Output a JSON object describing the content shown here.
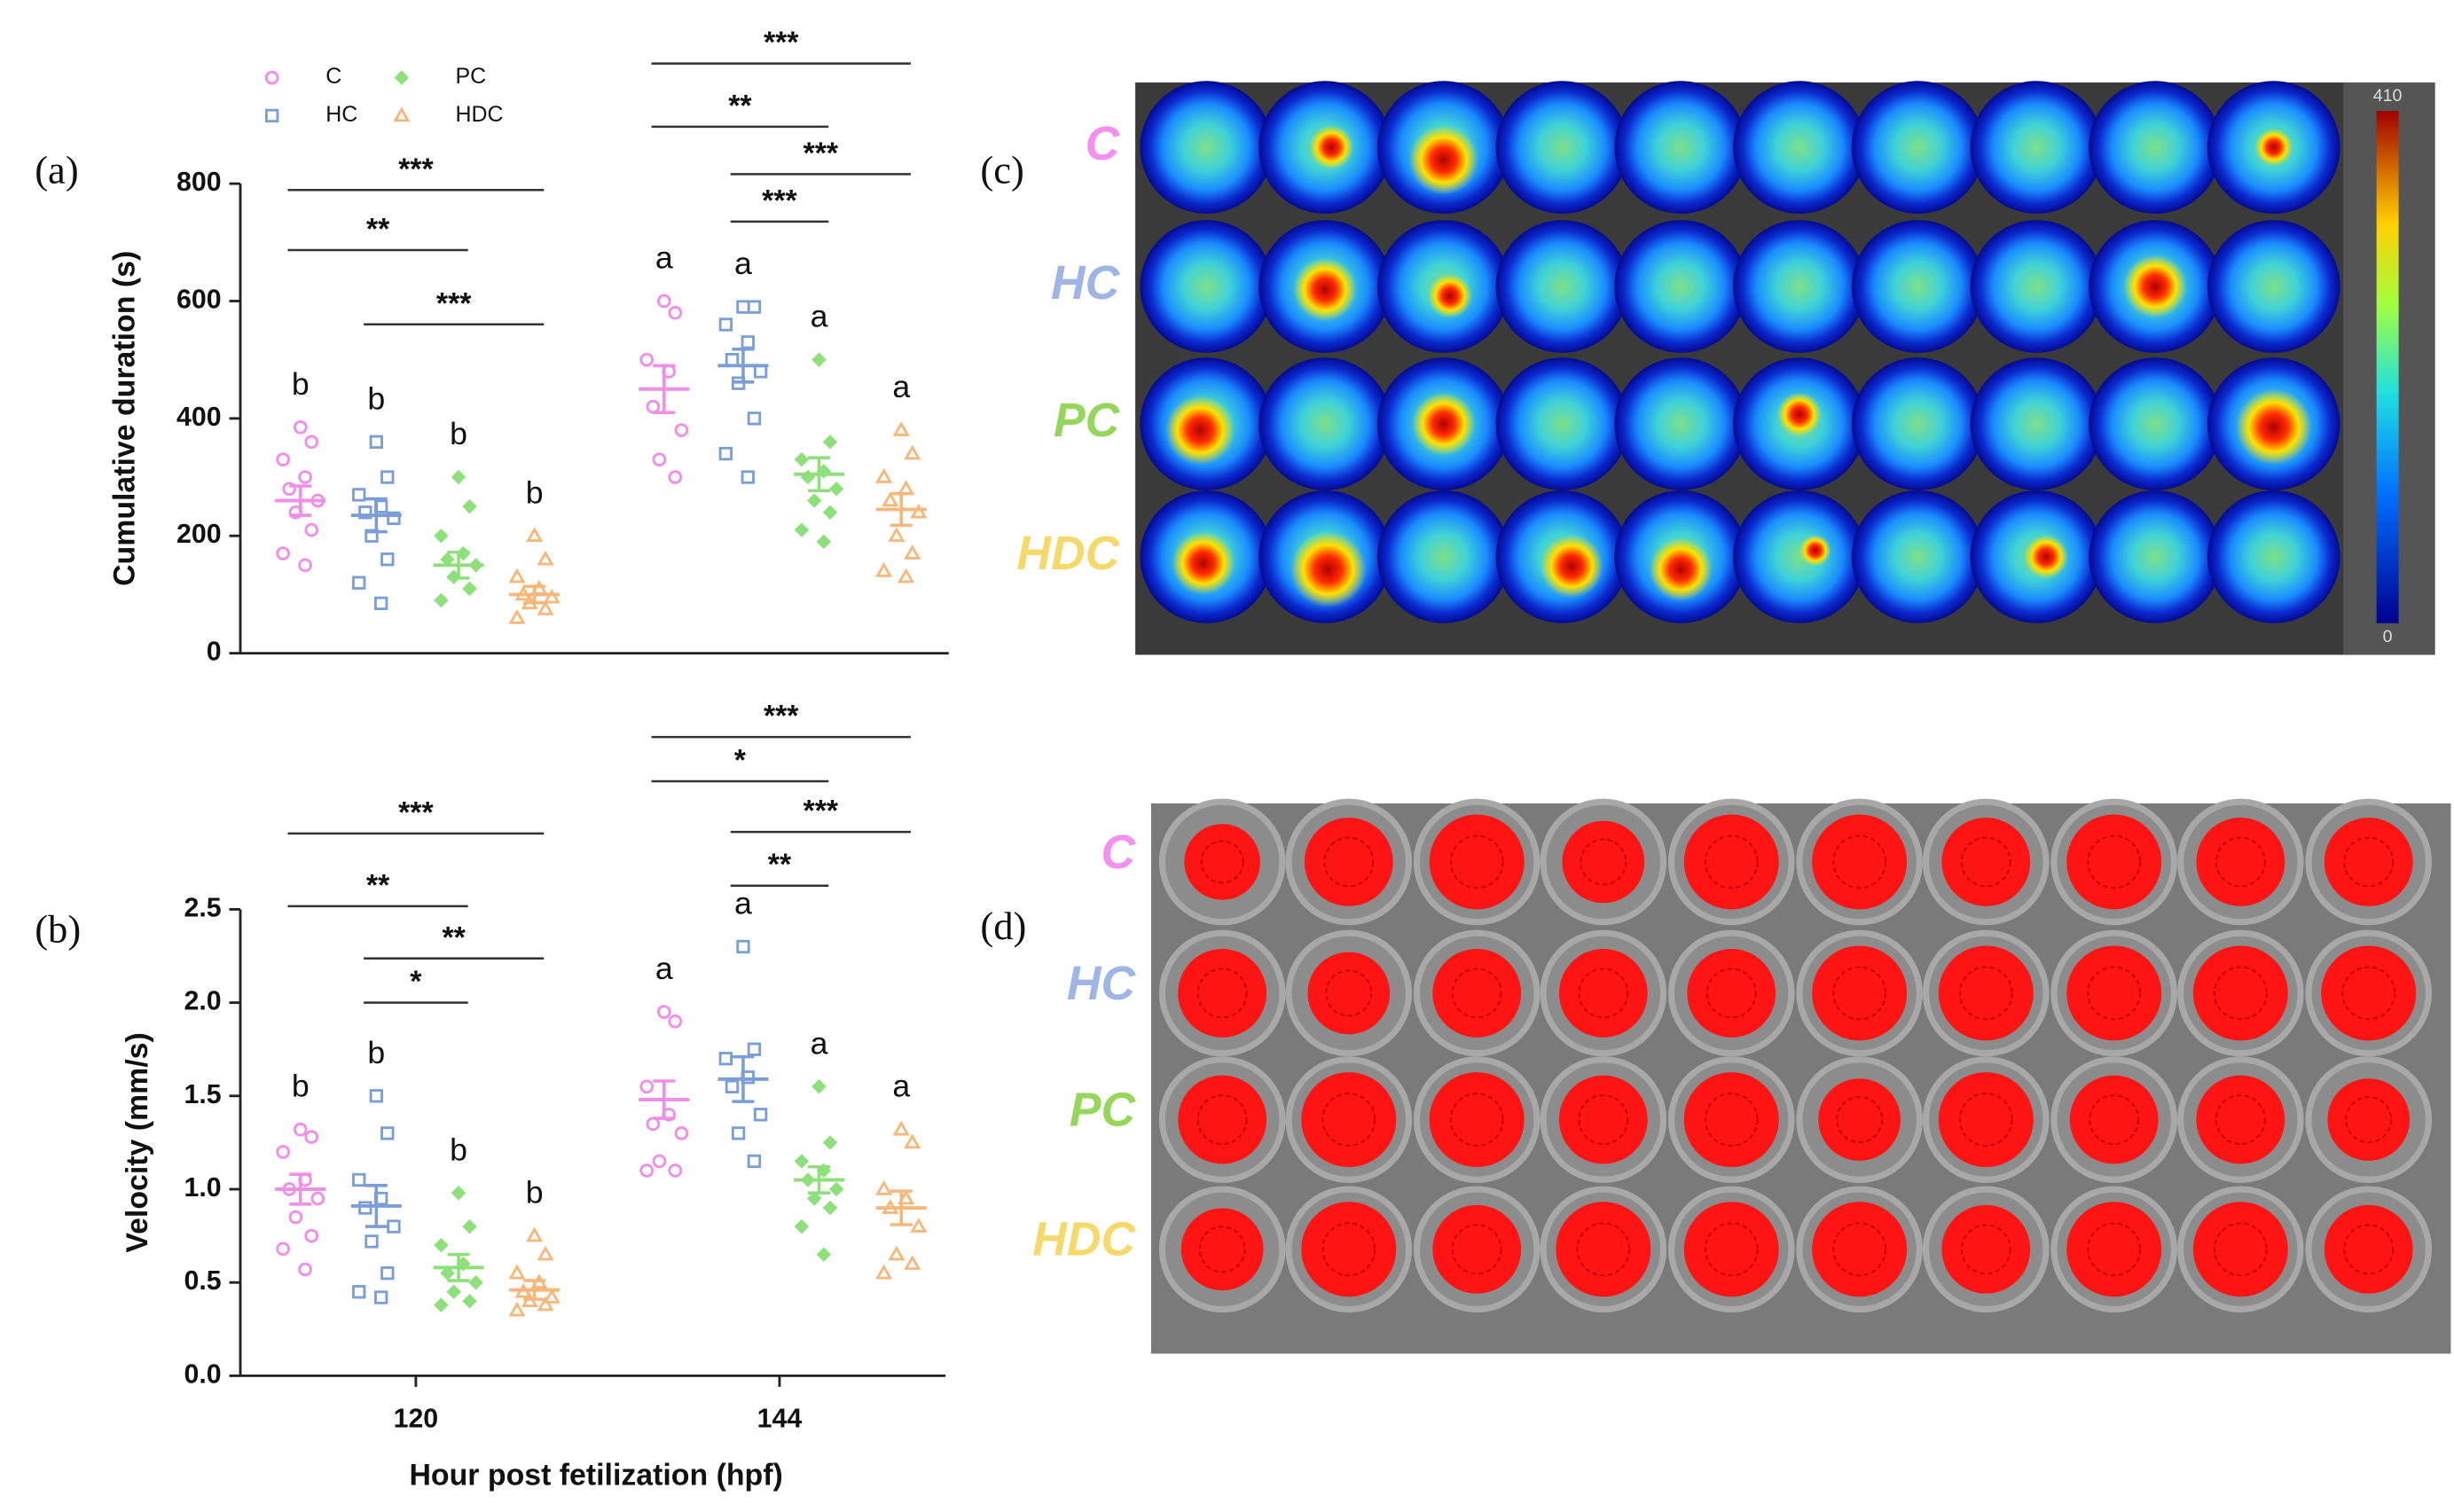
{
  "chart_data": [
    {
      "type": "dot",
      "panel": "(a)",
      "ylabel": "Cumulative duration (s)",
      "ylim": [
        0,
        800
      ],
      "yticks": [
        0,
        200,
        400,
        600,
        800
      ],
      "series": [
        {
          "name": "C",
          "color": "#f08ee8",
          "marker": "circle",
          "values": [
            [
              385,
              360,
              330,
              300,
              280,
              260,
              240,
              210,
              170,
              150
            ],
            [
              600,
              580,
              500,
              480,
              420,
              380,
              330,
              300
            ]
          ],
          "means": [
            260,
            450
          ],
          "sem": [
            25,
            40
          ],
          "letters": [
            "b",
            "a"
          ]
        },
        {
          "name": "HC",
          "color": "#7a9fd8",
          "marker": "square",
          "values": [
            [
              360,
              300,
              270,
              250,
              240,
              230,
              200,
              160,
              120,
              85
            ],
            [
              590,
              590,
              560,
              530,
              500,
              480,
              460,
              400,
              340,
              300
            ]
          ],
          "means": [
            235,
            490
          ],
          "sem": [
            28,
            28
          ],
          "letters": [
            "b",
            "a"
          ]
        },
        {
          "name": "PC",
          "color": "#8ee07a",
          "marker": "diamond",
          "values": [
            [
              300,
              250,
              200,
              170,
              160,
              150,
              130,
              110,
              90
            ],
            [
              500,
              360,
              330,
              310,
              300,
              280,
              260,
              240,
              210,
              190
            ]
          ],
          "means": [
            150,
            305
          ],
          "sem": [
            22,
            28
          ],
          "letters": [
            "b",
            "a"
          ]
        },
        {
          "name": "HDC",
          "color": "#f5b87a",
          "marker": "triangle",
          "values": [
            [
              200,
              160,
              130,
              110,
              100,
              95,
              85,
              75,
              60
            ],
            [
              380,
              340,
              300,
              280,
              260,
              240,
              200,
              170,
              140,
              130
            ]
          ],
          "means": [
            100,
            245
          ],
          "sem": [
            14,
            27
          ],
          "letters": [
            "b",
            "a"
          ]
        }
      ],
      "brackets": [
        [
          {
            "label": "***",
            "groups": [
              "C",
              "HDC"
            ]
          },
          {
            "label": "**",
            "groups": [
              "C",
              "PC"
            ]
          },
          {
            "label": "***",
            "groups": [
              "HC",
              "HDC"
            ]
          }
        ],
        [
          {
            "label": "***",
            "groups": [
              "C",
              "HDC"
            ]
          },
          {
            "label": "**",
            "groups": [
              "C",
              "PC"
            ]
          },
          {
            "label": "***",
            "groups": [
              "HC",
              "HDC"
            ]
          },
          {
            "label": "***",
            "groups": [
              "HC",
              "PC"
            ]
          }
        ]
      ]
    },
    {
      "type": "dot",
      "panel": "(b)",
      "ylabel": "Velocity (mm/s)",
      "xlabel": "Hour post fetilization (hpf)",
      "categories": [
        "120",
        "144"
      ],
      "ylim": [
        0,
        2.5
      ],
      "yticks": [
        {
          "value": 0,
          "label": "0.0"
        },
        0.5,
        {
          "value": 1,
          "label": "1.0"
        },
        1.5,
        {
          "value": 2,
          "label": "2.0"
        },
        2.5
      ],
      "series": [
        {
          "color": "#f08ee8",
          "marker": "circle",
          "values": [
            [
              1.32,
              1.28,
              1.2,
              1.05,
              1.0,
              0.95,
              0.85,
              0.75,
              0.68,
              0.57
            ],
            [
              1.95,
              1.9,
              1.55,
              1.4,
              1.35,
              1.3,
              1.15,
              1.1,
              1.1
            ]
          ],
          "means": [
            1.0,
            1.48
          ],
          "sem": [
            0.08,
            0.1
          ],
          "letters": [
            "b",
            "a"
          ]
        },
        {
          "color": "#7a9fd8",
          "marker": "square",
          "values": [
            [
              1.5,
              1.3,
              1.05,
              0.95,
              0.9,
              0.8,
              0.72,
              0.55,
              0.45,
              0.42
            ],
            [
              2.3,
              1.75,
              1.7,
              1.6,
              1.55,
              1.4,
              1.3,
              1.15
            ]
          ],
          "means": [
            0.91,
            1.59
          ],
          "sem": [
            0.11,
            0.12
          ],
          "letters": [
            "b",
            "a"
          ]
        },
        {
          "color": "#8ee07a",
          "marker": "diamond",
          "values": [
            [
              0.98,
              0.8,
              0.7,
              0.6,
              0.55,
              0.5,
              0.45,
              0.4,
              0.38
            ],
            [
              1.55,
              1.25,
              1.15,
              1.1,
              1.05,
              1.0,
              0.95,
              0.9,
              0.8,
              0.65
            ]
          ],
          "means": [
            0.58,
            1.05
          ],
          "sem": [
            0.07,
            0.07
          ],
          "letters": [
            "b",
            "a"
          ]
        },
        {
          "color": "#f5b87a",
          "marker": "triangle",
          "values": [
            [
              0.75,
              0.65,
              0.55,
              0.5,
              0.45,
              0.42,
              0.4,
              0.38,
              0.35
            ],
            [
              1.32,
              1.25,
              1.0,
              0.95,
              0.9,
              0.8,
              0.65,
              0.6,
              0.55
            ]
          ],
          "means": [
            0.46,
            0.9
          ],
          "sem": [
            0.05,
            0.09
          ],
          "letters": [
            "b",
            "a"
          ]
        }
      ],
      "brackets": [
        [
          {
            "label": "***",
            "groups": [
              "C",
              "HDC"
            ]
          },
          {
            "label": "**",
            "groups": [
              "C",
              "PC"
            ]
          },
          {
            "label": "**",
            "groups": [
              "HC",
              "HDC"
            ]
          },
          {
            "label": "*",
            "groups": [
              "HC",
              "PC"
            ]
          }
        ],
        [
          {
            "label": "***",
            "groups": [
              "C",
              "HDC"
            ]
          },
          {
            "label": "*",
            "groups": [
              "C",
              "PC"
            ]
          },
          {
            "label": "***",
            "groups": [
              "HC",
              "HDC"
            ]
          },
          {
            "label": "**",
            "groups": [
              "HC",
              "PC"
            ]
          }
        ]
      ]
    }
  ],
  "images": [
    {
      "panel": "(c)",
      "rows": [
        "C",
        "HC",
        "PC",
        "HDC"
      ],
      "row_colors": [
        "#f590f0",
        "#9fb5e6",
        "#96d65a",
        "#f5d96a"
      ],
      "colorbar_ticks": [
        0,
        410
      ]
    },
    {
      "panel": "(d)",
      "rows": [
        "C",
        "HC",
        "PC",
        "HDC"
      ],
      "row_colors": [
        "#f590f0",
        "#9fb5e6",
        "#96d65a",
        "#f5d96a"
      ]
    }
  ]
}
